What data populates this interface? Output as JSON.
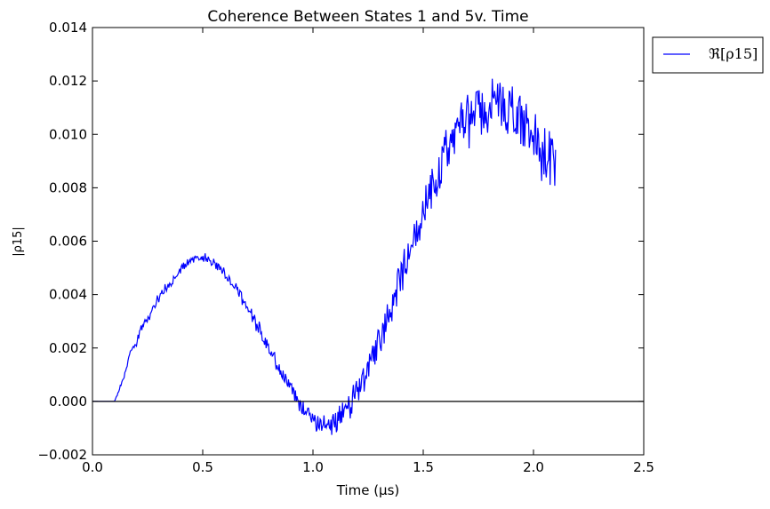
{
  "chart_data": {
    "type": "line",
    "title": "Coherence Between States 1 and 5v. Time",
    "xlabel": "Time (μs)",
    "ylabel": "|ρ15|",
    "xlim": [
      0.0,
      2.5
    ],
    "ylim": [
      -0.002,
      0.014
    ],
    "xticks": [
      "0.0",
      "0.5",
      "1.0",
      "1.5",
      "2.0",
      "2.5"
    ],
    "yticks": [
      "−0.002",
      "0.000",
      "0.002",
      "0.004",
      "0.006",
      "0.008",
      "0.010",
      "0.012",
      "0.014"
    ],
    "grid": false,
    "legend_position": "outside-top-right",
    "reference_line": {
      "y": 0.0,
      "color": "#000000"
    },
    "series": [
      {
        "name": "ℜ[ρ15]",
        "color": "#0000ff",
        "x": [
          0.0,
          0.05,
          0.1,
          0.13,
          0.15,
          0.17,
          0.2,
          0.22,
          0.25,
          0.3,
          0.35,
          0.4,
          0.45,
          0.5,
          0.55,
          0.6,
          0.65,
          0.7,
          0.75,
          0.8,
          0.85,
          0.9,
          0.95,
          1.0,
          1.05,
          1.1,
          1.15,
          1.2,
          1.25,
          1.3,
          1.35,
          1.4,
          1.45,
          1.5,
          1.55,
          1.6,
          1.65,
          1.7,
          1.75,
          1.8,
          1.85,
          1.9,
          1.95,
          2.0,
          2.05,
          2.1
        ],
        "y": [
          0.0,
          0.0,
          0.0,
          0.0006,
          0.0011,
          0.0018,
          0.0022,
          0.0027,
          0.0031,
          0.0039,
          0.0044,
          0.005,
          0.0053,
          0.0054,
          0.0052,
          0.0048,
          0.0043,
          0.0035,
          0.0028,
          0.002,
          0.0012,
          0.0005,
          -0.0002,
          -0.0007,
          -0.0009,
          -0.0008,
          -0.0004,
          0.0003,
          0.0013,
          0.0023,
          0.0035,
          0.0047,
          0.0059,
          0.007,
          0.0081,
          0.0092,
          0.01,
          0.0105,
          0.0109,
          0.0111,
          0.0111,
          0.0109,
          0.0104,
          0.0098,
          0.0093,
          0.0085
        ],
        "noise": [
          0,
          0,
          0,
          0.0001,
          0.0001,
          0.0001,
          0.0002,
          0.0002,
          0.0002,
          0.0002,
          0.0002,
          0.0002,
          0.0002,
          0.0002,
          0.0002,
          0.0002,
          0.0003,
          0.0003,
          0.0003,
          0.0003,
          0.0003,
          0.0003,
          0.0004,
          0.0004,
          0.0004,
          0.0005,
          0.0005,
          0.0006,
          0.0006,
          0.0007,
          0.0007,
          0.0008,
          0.0008,
          0.0009,
          0.0009,
          0.001,
          0.001,
          0.0011,
          0.0011,
          0.0012,
          0.0012,
          0.0012,
          0.0012,
          0.0012,
          0.0012,
          0.0012
        ]
      }
    ]
  }
}
